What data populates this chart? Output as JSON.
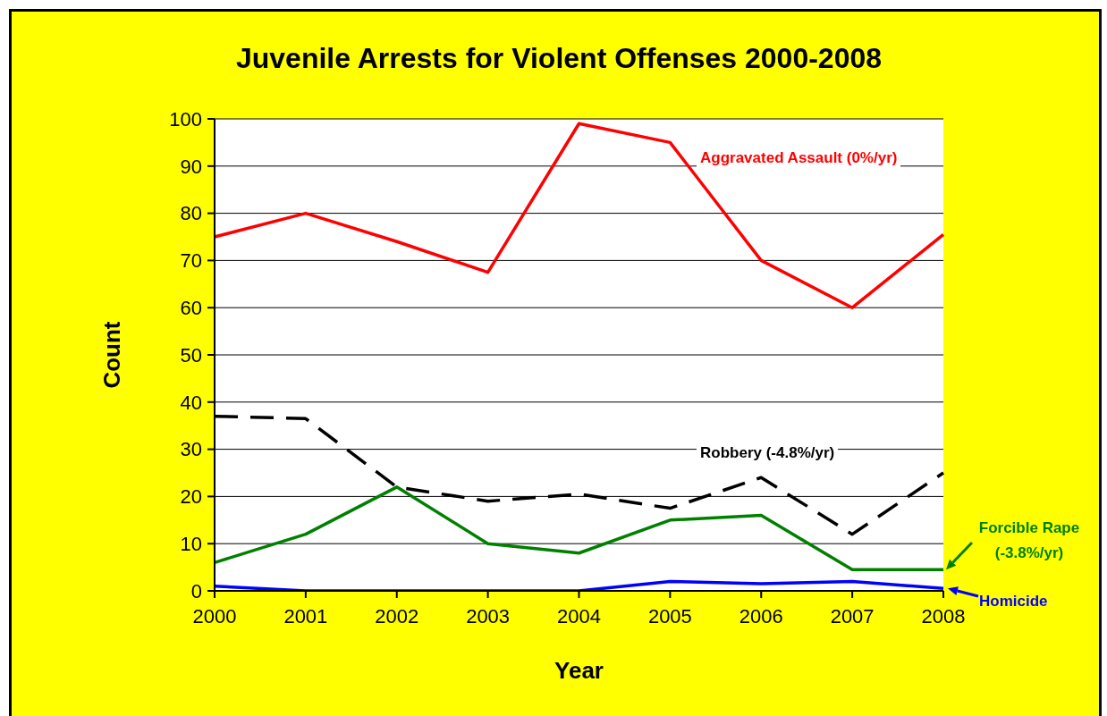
{
  "chart_data": {
    "type": "line",
    "title": "Juvenile Arrests for Violent Offenses 2000-2008",
    "xlabel": "Year",
    "ylabel": "Count",
    "categories": [
      "2000",
      "2001",
      "2002",
      "2003",
      "2004",
      "2005",
      "2006",
      "2007",
      "2008"
    ],
    "series": [
      {
        "name": "Aggravated Assault (0%/yr)",
        "color": "#ff0000",
        "values": [
          75,
          80,
          74,
          67.5,
          99,
          95,
          70,
          60,
          75.5
        ]
      },
      {
        "name": "Robbery (-4.8%/yr)",
        "color": "#000000",
        "line_style": "dashed",
        "values": [
          37,
          36.5,
          22,
          19,
          20.5,
          17.5,
          24,
          12,
          25
        ]
      },
      {
        "name": "Forcible Rape (-3.8%/yr)",
        "color": "#008000",
        "values": [
          6,
          12,
          22,
          10,
          8,
          15,
          16,
          4.5,
          4.5
        ]
      },
      {
        "name": "Homicide",
        "color": "#0000ff",
        "values": [
          1,
          0,
          0,
          0,
          0,
          2,
          1.5,
          2,
          0.5
        ]
      }
    ],
    "ylim": [
      0,
      100
    ],
    "yticks": [
      0,
      10,
      20,
      30,
      40,
      50,
      60,
      70,
      80,
      90,
      100
    ],
    "grid": "y",
    "marker": "none",
    "line_style": "solid"
  }
}
